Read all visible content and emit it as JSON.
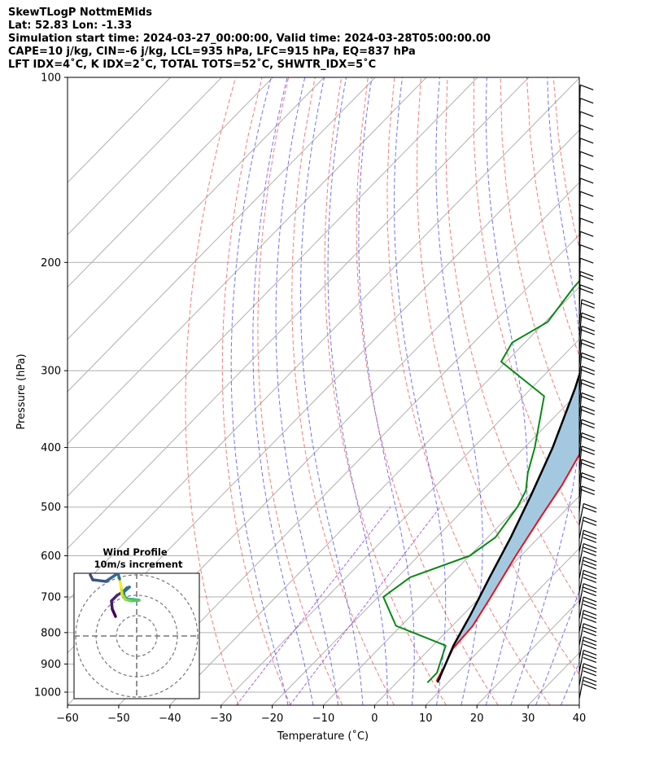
{
  "header": {
    "line1": "SkewTLogP NottmEMids",
    "line2": "Lat: 52.83   Lon: -1.33",
    "line3": "Simulation start time: 2024-03-27_00:00:00, Valid time: 2024-03-28T05:00:00.00",
    "line4": "CAPE=10 j/kg, CIN=-6 j/kg, LCL=935 hPa, LFC=915 hPa, EQ=837 hPa",
    "line5": "LFT IDX=4˚C, K IDX=2˚C, TOTAL TOTS=52˚C, SHWTR_IDX=5˚C"
  },
  "chart_data": {
    "type": "line",
    "subtype": "skew-T log-P",
    "xlabel": "Temperature (˚C)",
    "ylabel": "Pressure (hPa)",
    "xlim": [
      -60,
      40
    ],
    "ylim": [
      1050,
      100
    ],
    "y_scale": "log",
    "x_ticks": [
      "−60",
      "−50",
      "−40",
      "−30",
      "−20",
      "−10",
      "0",
      "10",
      "20",
      "30",
      "40"
    ],
    "y_ticks": [
      "100",
      "200",
      "300",
      "400",
      "500",
      "600",
      "700",
      "800",
      "900",
      "1000"
    ],
    "grid": true,
    "colors": {
      "temperature": "#e8101a",
      "dewpoint": "#0a8a14",
      "parcel": "#000000",
      "cape_fill": "#a5c8e1",
      "dry_adiabat": "#f06464",
      "moist_adiabat": "#5a5aee",
      "mixing_ratio": "#9a3bd0"
    },
    "series": [
      {
        "key": "temperature",
        "x": [
          7.5,
          6.0,
          4.5,
          4.0,
          2.0,
          -1.0,
          -3.5,
          -5.5,
          -8.5,
          -11.5,
          -13.5,
          -14.0,
          -15.5,
          -16.5,
          -21.5,
          -26.0,
          -30.5,
          -33.0,
          -36.0,
          -38.5,
          -41.0,
          -41.5,
          -42.5,
          -46.0
        ],
        "p": [
          960,
          900,
          850,
          780,
          700,
          600,
          520,
          460,
          400,
          350,
          330,
          320,
          300,
          280,
          250,
          210,
          180,
          165,
          155,
          145,
          135,
          125,
          115,
          100
        ]
      },
      {
        "key": "dewpoint",
        "x": [
          6.0,
          6.0,
          2.5,
          -11.0,
          -19.0,
          -17.5,
          -10.0,
          -8.5,
          -10.0,
          -11.5,
          -14.5,
          -18.0,
          -26.0,
          -41.0,
          -42.5,
          -39.5,
          -41.0,
          -41.5,
          -44.0,
          -53.0,
          -65.0
        ],
        "p": [
          965,
          930,
          840,
          780,
          700,
          650,
          600,
          560,
          500,
          470,
          440,
          400,
          330,
          290,
          270,
          250,
          220,
          200,
          180,
          140,
          100
        ]
      },
      {
        "key": "parcel",
        "x": [
          8.0,
          6.0,
          4.0,
          1.5,
          -2.0,
          -5.5,
          -9.5,
          -14.5,
          -21.5,
          -30.0,
          -40.5,
          -55.0
        ],
        "p": [
          965,
          900,
          840,
          750,
          650,
          560,
          480,
          400,
          320,
          250,
          190,
          130
        ]
      }
    ],
    "wind_barbs": {
      "count": 45,
      "note": "barbs along right edge, from ~100 hPa to ~1000 hPa"
    },
    "hodograph": {
      "title": "Wind Profile",
      "subtitle": "10m/s increment"
    }
  }
}
